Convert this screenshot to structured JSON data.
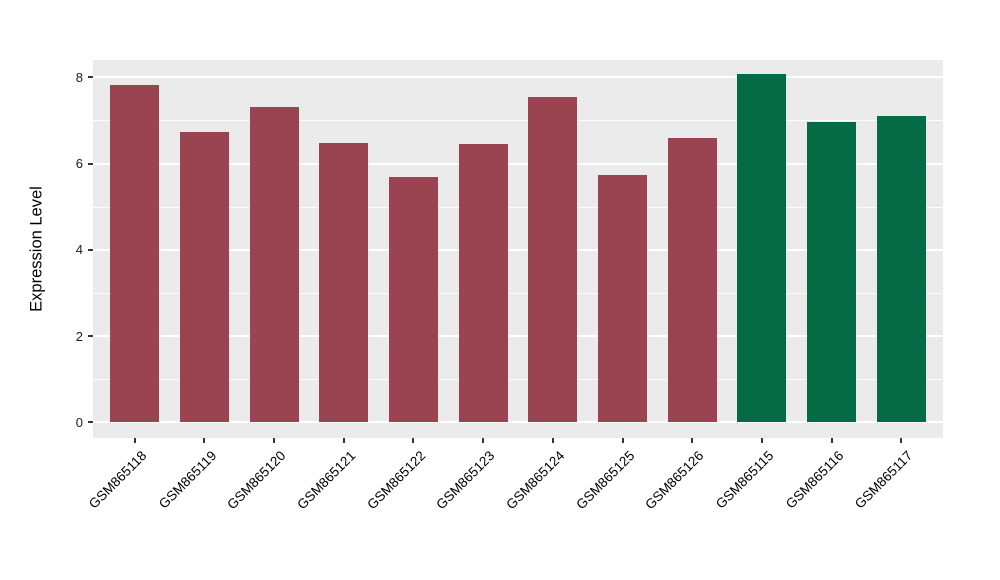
{
  "chart_data": {
    "type": "bar",
    "title": "",
    "xlabel": "",
    "ylabel": "Expression Level",
    "categories": [
      "GSM865118",
      "GSM865119",
      "GSM865120",
      "GSM865121",
      "GSM865122",
      "GSM865123",
      "GSM865124",
      "GSM865125",
      "GSM865126",
      "GSM865115",
      "GSM865116",
      "GSM865117"
    ],
    "values": [
      7.83,
      6.73,
      7.31,
      6.47,
      5.68,
      6.45,
      7.54,
      5.73,
      6.6,
      8.07,
      6.97,
      7.1
    ],
    "bar_colors": [
      "#9A4451",
      "#9A4451",
      "#9A4451",
      "#9A4451",
      "#9A4451",
      "#9A4451",
      "#9A4451",
      "#9A4451",
      "#9A4451",
      "#046B45",
      "#046B45",
      "#046B45"
    ],
    "yticks": [
      0,
      2,
      4,
      6,
      8
    ],
    "yticks_minor": [
      1,
      3,
      5,
      7
    ],
    "ylim": [
      -0.36,
      8.4
    ],
    "xlim_units": [
      0.4,
      12.6
    ],
    "bar_width_units": 0.7,
    "x_tick_rotation_deg": 45,
    "grid": "on",
    "legend_position": "none",
    "panel_background": "#EBEBEB",
    "grid_major_color": "#FFFFFF",
    "grid_minor_color": "#FFFFFF",
    "tick_color": "#333333",
    "text_color": "#000000"
  }
}
